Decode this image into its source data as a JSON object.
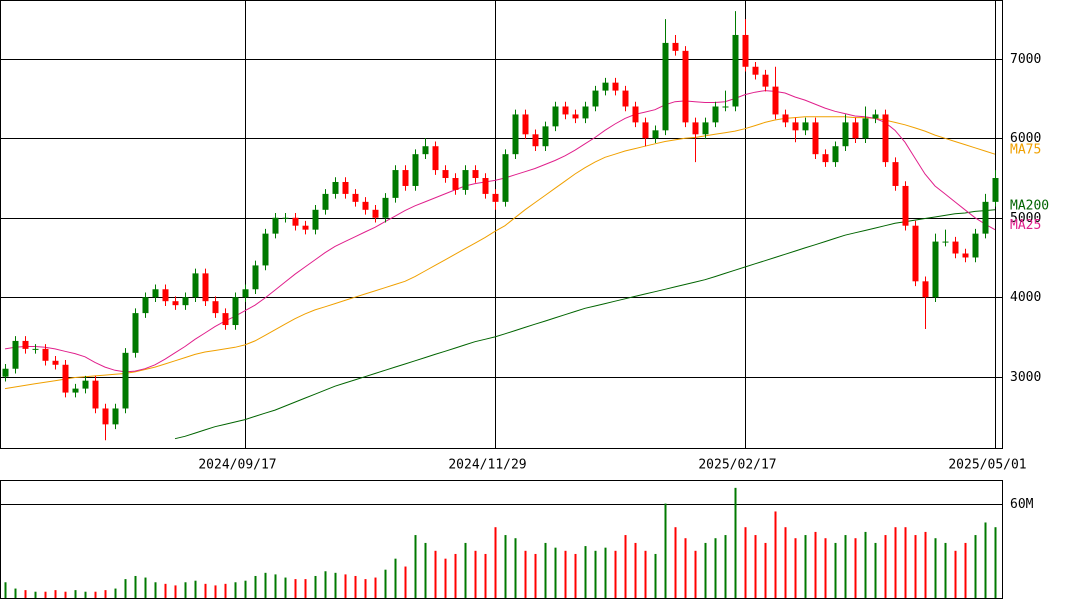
{
  "chart_data": {
    "type": "candlestick",
    "ohlc": [
      [
        3000,
        3160,
        2940,
        3100
      ],
      [
        3100,
        3510,
        3040,
        3450
      ],
      [
        3450,
        3510,
        3290,
        3350
      ],
      [
        3350,
        3410,
        3290,
        3350
      ],
      [
        3350,
        3410,
        3140,
        3200
      ],
      [
        3200,
        3260,
        3090,
        3150
      ],
      [
        3150,
        3210,
        2740,
        2800
      ],
      [
        2800,
        2910,
        2740,
        2850
      ],
      [
        2850,
        3010,
        2790,
        2950
      ],
      [
        2950,
        3010,
        2540,
        2600
      ],
      [
        2600,
        2660,
        2200,
        2400
      ],
      [
        2400,
        2660,
        2340,
        2600
      ],
      [
        2600,
        3360,
        2540,
        3300
      ],
      [
        3300,
        3860,
        3240,
        3800
      ],
      [
        3800,
        4060,
        3740,
        4000
      ],
      [
        4000,
        4160,
        3940,
        4100
      ],
      [
        4100,
        4160,
        3890,
        3950
      ],
      [
        3950,
        4010,
        3840,
        3900
      ],
      [
        3900,
        4060,
        3840,
        4000
      ],
      [
        4000,
        4360,
        3940,
        4300
      ],
      [
        4300,
        4360,
        3890,
        3950
      ],
      [
        3950,
        4010,
        3740,
        3800
      ],
      [
        3800,
        3860,
        3590,
        3650
      ],
      [
        3650,
        4060,
        3590,
        4000
      ],
      [
        4000,
        4160,
        3940,
        4100
      ],
      [
        4100,
        4460,
        4040,
        4400
      ],
      [
        4400,
        4860,
        4340,
        4800
      ],
      [
        4800,
        5060,
        4740,
        5000
      ],
      [
        5000,
        5060,
        4940,
        5000
      ],
      [
        5000,
        5060,
        4840,
        4900
      ],
      [
        4900,
        4960,
        4790,
        4850
      ],
      [
        4850,
        5160,
        4790,
        5100
      ],
      [
        5100,
        5360,
        5040,
        5300
      ],
      [
        5300,
        5510,
        5240,
        5450
      ],
      [
        5450,
        5510,
        5240,
        5300
      ],
      [
        5300,
        5360,
        5140,
        5200
      ],
      [
        5200,
        5260,
        5040,
        5100
      ],
      [
        5100,
        5160,
        4940,
        5000
      ],
      [
        5000,
        5310,
        4940,
        5250
      ],
      [
        5250,
        5660,
        5190,
        5600
      ],
      [
        5600,
        5660,
        5340,
        5400
      ],
      [
        5400,
        5860,
        5340,
        5800
      ],
      [
        5800,
        6000,
        5740,
        5900
      ],
      [
        5900,
        5960,
        5540,
        5600
      ],
      [
        5600,
        5660,
        5440,
        5500
      ],
      [
        5500,
        5560,
        5290,
        5350
      ],
      [
        5350,
        5660,
        5290,
        5600
      ],
      [
        5600,
        5660,
        5440,
        5500
      ],
      [
        5500,
        5560,
        5240,
        5300
      ],
      [
        5300,
        5360,
        5100,
        5200
      ],
      [
        5200,
        5860,
        5140,
        5800
      ],
      [
        5800,
        6360,
        5740,
        6300
      ],
      [
        6300,
        6360,
        5990,
        6050
      ],
      [
        6050,
        6110,
        5840,
        5900
      ],
      [
        5900,
        6210,
        5840,
        6150
      ],
      [
        6150,
        6460,
        6090,
        6400
      ],
      [
        6400,
        6460,
        6240,
        6300
      ],
      [
        6300,
        6360,
        6190,
        6250
      ],
      [
        6250,
        6460,
        6190,
        6400
      ],
      [
        6400,
        6660,
        6340,
        6600
      ],
      [
        6600,
        6760,
        6540,
        6700
      ],
      [
        6700,
        6760,
        6540,
        6600
      ],
      [
        6600,
        6660,
        6340,
        6400
      ],
      [
        6400,
        6460,
        6140,
        6200
      ],
      [
        6200,
        6260,
        5900,
        6000
      ],
      [
        6000,
        6160,
        5940,
        6100
      ],
      [
        6100,
        7500,
        6040,
        7200
      ],
      [
        7200,
        7300,
        7040,
        7100
      ],
      [
        7100,
        7160,
        6140,
        6200
      ],
      [
        6200,
        6260,
        5700,
        6050
      ],
      [
        6050,
        6260,
        5990,
        6200
      ],
      [
        6200,
        6460,
        6140,
        6400
      ],
      [
        6400,
        6600,
        6340,
        6400
      ],
      [
        6400,
        7600,
        6340,
        7300
      ],
      [
        7300,
        7500,
        6840,
        6900
      ],
      [
        6900,
        6960,
        6740,
        6800
      ],
      [
        6800,
        6860,
        6590,
        6650
      ],
      [
        6650,
        6900,
        6240,
        6300
      ],
      [
        6300,
        6360,
        6140,
        6200
      ],
      [
        6200,
        6260,
        5950,
        6100
      ],
      [
        6100,
        6260,
        6040,
        6200
      ],
      [
        6200,
        6260,
        5740,
        5800
      ],
      [
        5800,
        5860,
        5640,
        5700
      ],
      [
        5700,
        5960,
        5640,
        5900
      ],
      [
        5900,
        6300,
        5840,
        6200
      ],
      [
        6200,
        6260,
        5940,
        6000
      ],
      [
        6000,
        6400,
        5940,
        6250
      ],
      [
        6250,
        6360,
        6190,
        6300
      ],
      [
        6300,
        6360,
        5640,
        5700
      ],
      [
        5700,
        5760,
        5340,
        5400
      ],
      [
        5400,
        5460,
        4840,
        4900
      ],
      [
        4900,
        4960,
        4140,
        4200
      ],
      [
        4200,
        4260,
        3600,
        4000
      ],
      [
        4000,
        4800,
        3940,
        4700
      ],
      [
        4700,
        4850,
        4640,
        4700
      ],
      [
        4700,
        4760,
        4490,
        4550
      ],
      [
        4550,
        4610,
        4440,
        4500
      ],
      [
        4500,
        4860,
        4440,
        4800
      ],
      [
        4800,
        5300,
        4740,
        5200
      ],
      [
        5200,
        5600,
        5140,
        5500
      ]
    ],
    "up_color": "#007a00",
    "down_color": "#ff0000",
    "xlim": [
      -0.5,
      99.8
    ],
    "xticks": [
      {
        "value": 24,
        "label": "2024/09/17"
      },
      {
        "value": 49,
        "label": "2024/11/29"
      },
      {
        "value": 74,
        "label": "2025/02/17"
      },
      {
        "value": 99,
        "label": "2025/05/01"
      }
    ],
    "ylim": [
      2090,
      7740
    ],
    "yticks": [
      3000,
      4000,
      5000,
      6000,
      7000
    ],
    "grid": true,
    "moving_averages": [
      {
        "name": "MA75",
        "color": "#f0a000",
        "values": [
          2850,
          2870,
          2890,
          2910,
          2930,
          2950,
          2970,
          2990,
          3000,
          3010,
          3020,
          3030,
          3040,
          3060,
          3090,
          3120,
          3160,
          3200,
          3240,
          3280,
          3310,
          3330,
          3350,
          3370,
          3400,
          3450,
          3520,
          3590,
          3660,
          3730,
          3790,
          3840,
          3880,
          3920,
          3960,
          4000,
          4040,
          4080,
          4120,
          4160,
          4200,
          4260,
          4330,
          4400,
          4470,
          4540,
          4610,
          4680,
          4750,
          4830,
          4900,
          5000,
          5100,
          5190,
          5280,
          5370,
          5460,
          5550,
          5630,
          5700,
          5760,
          5800,
          5840,
          5870,
          5900,
          5930,
          5960,
          5980,
          6000,
          6010,
          6030,
          6050,
          6070,
          6090,
          6120,
          6160,
          6200,
          6230,
          6250,
          6260,
          6270,
          6270,
          6270,
          6270,
          6270,
          6260,
          6260,
          6250,
          6230,
          6200,
          6170,
          6130,
          6090,
          6040,
          6000,
          5960,
          5920,
          5880,
          5840,
          5800
        ]
      },
      {
        "name": "MA200",
        "color": "#006400",
        "values": [
          null,
          null,
          null,
          null,
          null,
          null,
          null,
          null,
          null,
          null,
          null,
          null,
          null,
          null,
          null,
          null,
          null,
          2220,
          2250,
          2290,
          2330,
          2370,
          2400,
          2430,
          2460,
          2500,
          2540,
          2580,
          2630,
          2680,
          2730,
          2780,
          2830,
          2880,
          2920,
          2960,
          3000,
          3040,
          3080,
          3120,
          3160,
          3200,
          3240,
          3280,
          3320,
          3360,
          3400,
          3440,
          3470,
          3500,
          3540,
          3580,
          3620,
          3660,
          3700,
          3740,
          3780,
          3820,
          3860,
          3890,
          3920,
          3950,
          3980,
          4010,
          4040,
          4070,
          4100,
          4130,
          4160,
          4190,
          4220,
          4260,
          4300,
          4340,
          4380,
          4420,
          4460,
          4500,
          4540,
          4580,
          4620,
          4660,
          4700,
          4740,
          4780,
          4810,
          4840,
          4870,
          4900,
          4930,
          4950,
          4970,
          4990,
          5010,
          5030,
          5050,
          5060,
          5080,
          5090,
          5100
        ]
      },
      {
        "name": "MA25",
        "color": "#e0208c",
        "values": [
          3350,
          3370,
          3380,
          3380,
          3370,
          3350,
          3320,
          3290,
          3250,
          3180,
          3120,
          3080,
          3060,
          3070,
          3100,
          3150,
          3220,
          3300,
          3380,
          3470,
          3550,
          3630,
          3700,
          3760,
          3830,
          3900,
          3990,
          4090,
          4190,
          4290,
          4380,
          4470,
          4560,
          4640,
          4700,
          4760,
          4820,
          4880,
          4950,
          5020,
          5090,
          5150,
          5200,
          5250,
          5300,
          5350,
          5400,
          5430,
          5450,
          5470,
          5500,
          5540,
          5580,
          5620,
          5670,
          5720,
          5780,
          5850,
          5930,
          6010,
          6100,
          6180,
          6250,
          6300,
          6330,
          6360,
          6420,
          6460,
          6470,
          6460,
          6450,
          6450,
          6460,
          6500,
          6550,
          6580,
          6600,
          6590,
          6570,
          6520,
          6480,
          6430,
          6380,
          6340,
          6310,
          6280,
          6270,
          6250,
          6200,
          6100,
          5950,
          5750,
          5550,
          5400,
          5300,
          5200,
          5100,
          5000,
          4920,
          4850
        ]
      }
    ],
    "volume": {
      "values": [
        10,
        6,
        5,
        4,
        4,
        5,
        4,
        5,
        4,
        4,
        5,
        6,
        12,
        14,
        13,
        10,
        9,
        8,
        10,
        11,
        9,
        8,
        9,
        10,
        11,
        14,
        16,
        15,
        13,
        12,
        12,
        14,
        17,
        16,
        15,
        14,
        12,
        13,
        18,
        25,
        20,
        40,
        35,
        30,
        25,
        28,
        35,
        30,
        28,
        45,
        40,
        38,
        30,
        28,
        35,
        32,
        30,
        28,
        33,
        30,
        32,
        30,
        40,
        35,
        30,
        28,
        60,
        45,
        38,
        30,
        35,
        38,
        40,
        70,
        45,
        40,
        35,
        55,
        45,
        38,
        40,
        42,
        38,
        35,
        40,
        38,
        42,
        35,
        40,
        45,
        45,
        40,
        42,
        38,
        35,
        30,
        35,
        40,
        48,
        45
      ],
      "ylim": [
        0,
        75
      ],
      "yticks": [
        {
          "value": 60,
          "label": "60M"
        }
      ]
    }
  }
}
